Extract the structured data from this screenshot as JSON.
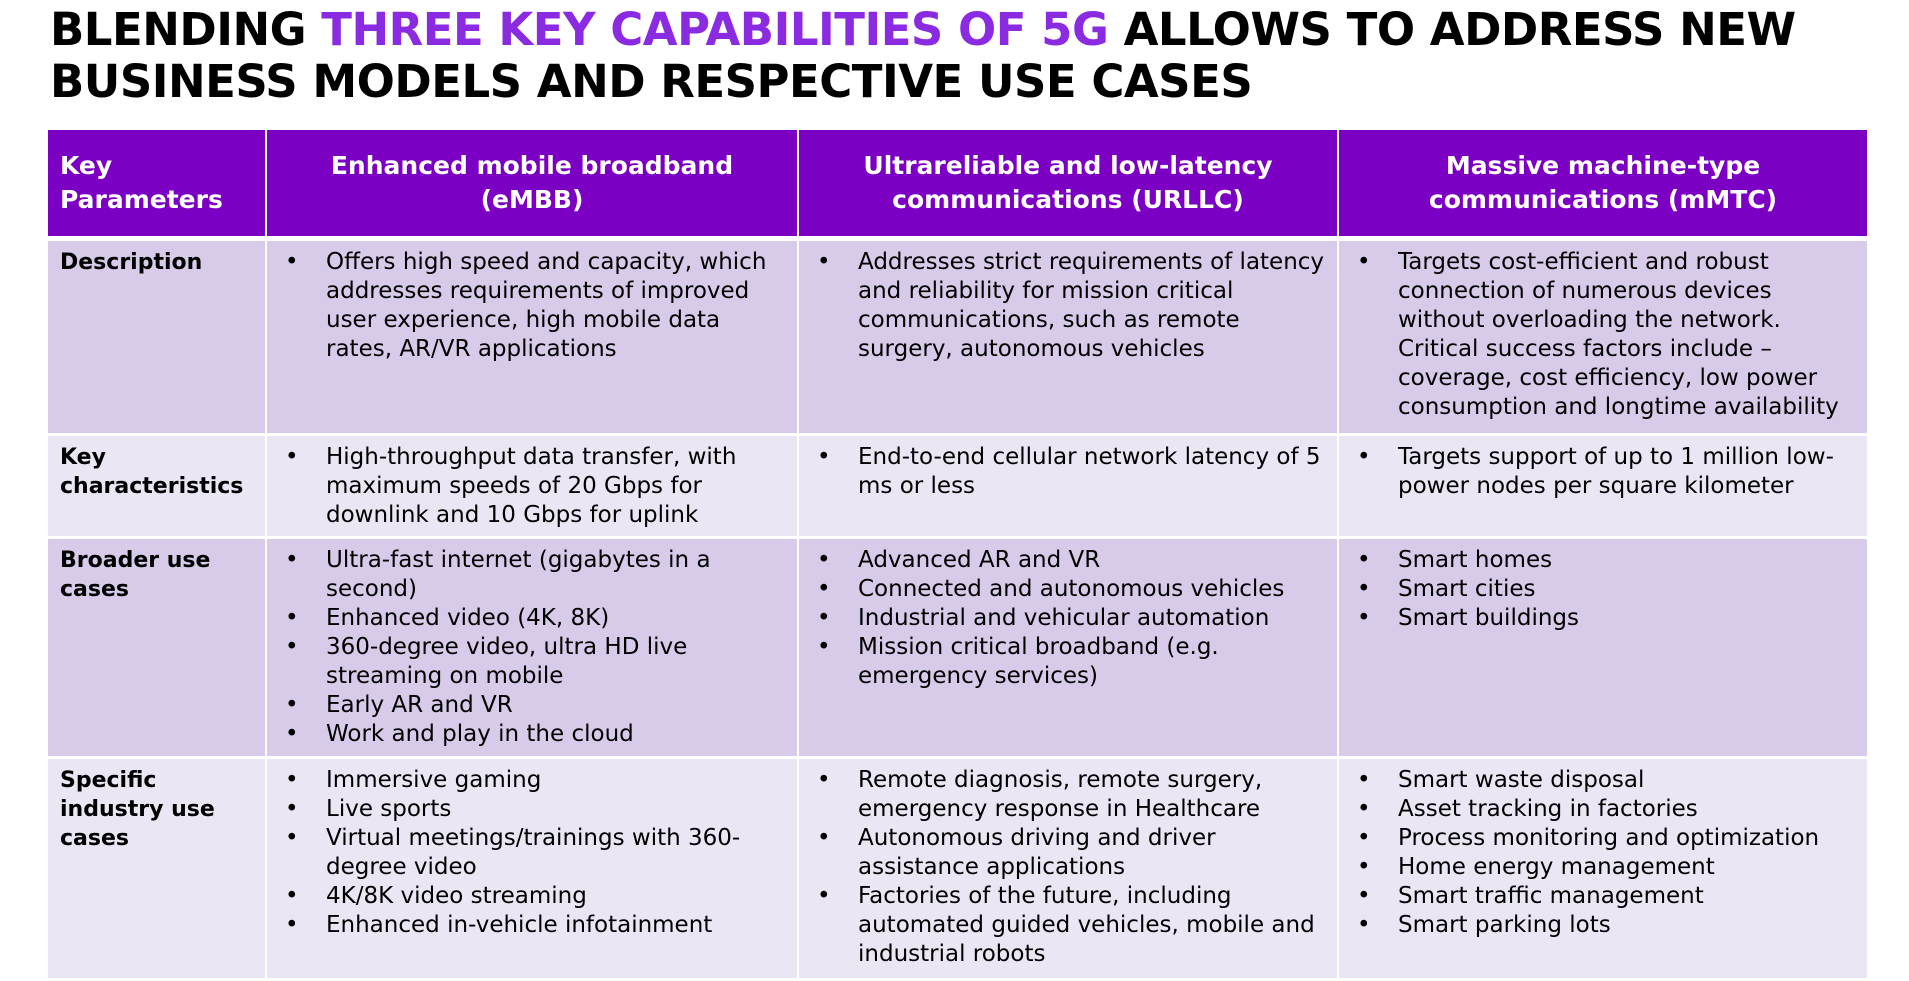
{
  "title": {
    "part1": "BLENDING ",
    "highlight": "THREE KEY CAPABILITIES OF 5G",
    "part2": " ALLOWS TO ADDRESS NEW BUSINESS MODELS AND RESPECTIVE USE CASES"
  },
  "colors": {
    "header_bg": "#7b00c4",
    "highlight": "#8a2be2",
    "row_dark": "#d7cbe9",
    "row_light": "#ebe6f4"
  },
  "bullet_char": "•",
  "table": {
    "headers": [
      "Key Parameters",
      "Enhanced mobile broadband (eMBB)",
      "Ultrareliable and low-latency communications (URLLC)",
      "Massive machine-type communications (mMTC)"
    ],
    "rows": [
      {
        "label": "Description",
        "cells": [
          [
            "Offers high speed and capacity, which addresses requirements of improved user experience, high mobile data rates, AR/VR applications"
          ],
          [
            "Addresses strict requirements of latency and reliability for mission critical communications, such as remote surgery, autonomous vehicles"
          ],
          [
            "Targets cost-efficient and robust connection of numerous devices without overloading the network. Critical success factors include – coverage, cost efficiency, low power consumption and longtime availability"
          ]
        ]
      },
      {
        "label": "Key characteristics",
        "cells": [
          [
            "High-throughput data transfer, with maximum speeds of 20 Gbps for downlink and 10 Gbps for uplink"
          ],
          [
            "End-to-end cellular network latency of 5 ms or less"
          ],
          [
            "Targets support of up to 1 million low-power nodes per square kilometer"
          ]
        ]
      },
      {
        "label": "Broader use cases",
        "cells": [
          [
            "Ultra-fast internet (gigabytes in a second)",
            "Enhanced video (4K, 8K)",
            "360-degree video, ultra HD live streaming on mobile",
            "Early AR and VR",
            "Work and play in the cloud"
          ],
          [
            "Advanced AR and VR",
            "Connected and autonomous vehicles",
            "Industrial and vehicular automation",
            "Mission critical broadband (e.g. emergency services)"
          ],
          [
            "Smart homes",
            "Smart cities",
            "Smart buildings"
          ]
        ]
      },
      {
        "label": "Specific industry use cases",
        "cells": [
          [
            "Immersive gaming",
            "Live sports",
            "Virtual meetings/trainings with 360-degree video",
            "4K/8K video streaming",
            "Enhanced in-vehicle infotainment"
          ],
          [
            "Remote diagnosis, remote surgery, emergency response in Healthcare",
            "Autonomous driving and driver assistance applications",
            "Factories of the future, including automated guided vehicles, mobile and industrial robots"
          ],
          [
            "Smart waste disposal",
            "Asset tracking in factories",
            "Process monitoring and optimization",
            "Home energy management",
            "Smart traffic management",
            "Smart parking lots"
          ]
        ]
      }
    ]
  }
}
